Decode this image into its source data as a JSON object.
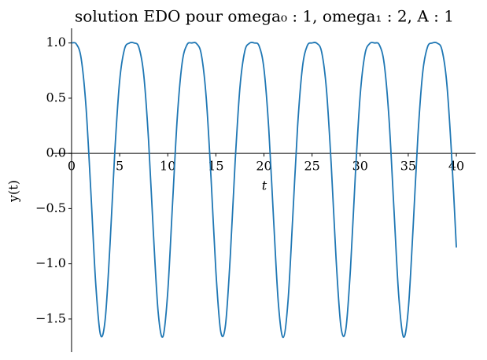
{
  "chart_data": {
    "type": "line",
    "title": "solution EDO pour omega₀ : 1, omega₁ : 2, A : 1",
    "x_label": "t",
    "y_label": "y(t)",
    "x": [
      0,
      0.5,
      1,
      1.5,
      2,
      2.5,
      3,
      3.5,
      4,
      4.5,
      5,
      5.5,
      6,
      6.5,
      7,
      7.5,
      8,
      8.5,
      9,
      9.5,
      10,
      10.5,
      11,
      11.5,
      12,
      12.5,
      13,
      13.5,
      14,
      14.5,
      15,
      15.5,
      16,
      16.5,
      17,
      17.5,
      18,
      18.5,
      19,
      19.5,
      20,
      20.5,
      21,
      21.5,
      22,
      22.5,
      23,
      23.5,
      24,
      24.5,
      25,
      25.5,
      26,
      26.5,
      27,
      27.5,
      28,
      28.5,
      29,
      29.5,
      30,
      30.5,
      31,
      31.5,
      32,
      32.5,
      33,
      33.5,
      34,
      34.5,
      35,
      35.5,
      36,
      36.5,
      37,
      37.5,
      38,
      38.5,
      39,
      39.5,
      40
    ],
    "values": [
      1,
      0.99,
      0.859,
      0.424,
      -0.337,
      -1.163,
      -1.64,
      -1.5,
      -0.823,
      0.023,
      0.658,
      0.943,
      0.999,
      1.0,
      0.96,
      0.715,
      0.125,
      -0.711,
      -1.435,
      -1.659,
      -1.255,
      -0.451,
      0.339,
      0.822,
      0.984,
      1.0,
      0.994,
      0.891,
      0.503,
      -0.224,
      -1.064,
      -1.61,
      -1.555,
      -0.932,
      -0.084,
      0.594,
      0.923,
      0.998,
      1.0,
      0.972,
      0.766,
      0.223,
      -0.597,
      -1.36,
      -1.667,
      -1.34,
      -0.566,
      0.248,
      0.779,
      0.975,
      1.0,
      0.997,
      0.917,
      0.575,
      -0.113,
      -0.959,
      -1.568,
      -1.599,
      -1.037,
      -0.196,
      0.523,
      0.899,
      0.995,
      1.0,
      0.982,
      0.811,
      0.316,
      -0.483,
      -1.278,
      -1.662,
      -1.416,
      -0.68,
      0.152,
      0.73,
      0.963,
      1.0,
      0.999,
      0.938,
      0.641,
      -0.006,
      -0.852
    ],
    "color": "#1f77b4",
    "xlim": [
      -2,
      42
    ],
    "ylim": [
      -1.8,
      1.133
    ],
    "xticks": [
      0,
      5,
      10,
      15,
      20,
      25,
      30,
      35,
      40
    ],
    "yticks": [
      {
        "value": -1.5,
        "label": "−1.5"
      },
      {
        "value": -1.0,
        "label": "−1.0"
      },
      {
        "value": -0.5,
        "label": "−0.5"
      },
      {
        "value": 0,
        "label": "0.0"
      },
      {
        "value": 0.5,
        "label": "0.5"
      },
      {
        "value": 1.0,
        "label": "1.0"
      }
    ],
    "grid": false
  }
}
